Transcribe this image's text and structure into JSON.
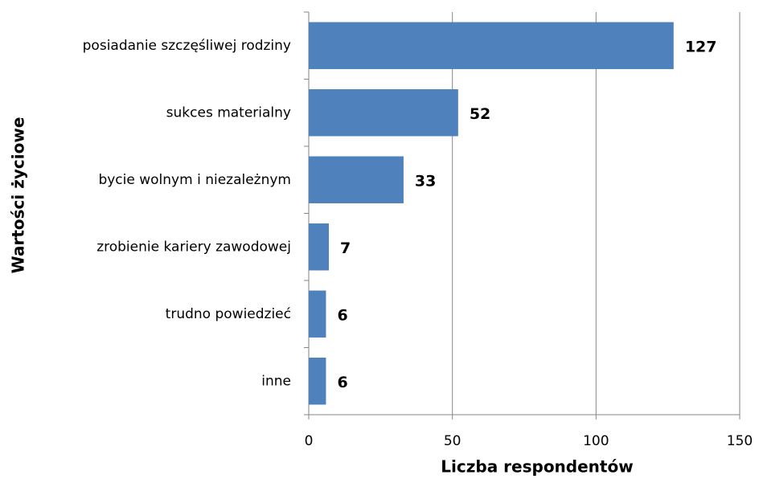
{
  "chart_data": {
    "type": "barh",
    "xlabel": "Liczba respondentów",
    "ylabel": "Wartości życiowe",
    "categories": [
      "posiadanie szczęśliwej rodziny",
      "sukces materialny",
      "bycie wolnym i niezależnym",
      "zrobienie kariery zawodowej",
      "trudno powiedzieć",
      "inne"
    ],
    "values": [
      127,
      52,
      33,
      7,
      6,
      6
    ],
    "color": "#4f81bd",
    "xlim": [
      0,
      150
    ],
    "xticks": [
      0,
      50,
      100,
      150
    ],
    "grid": true
  }
}
